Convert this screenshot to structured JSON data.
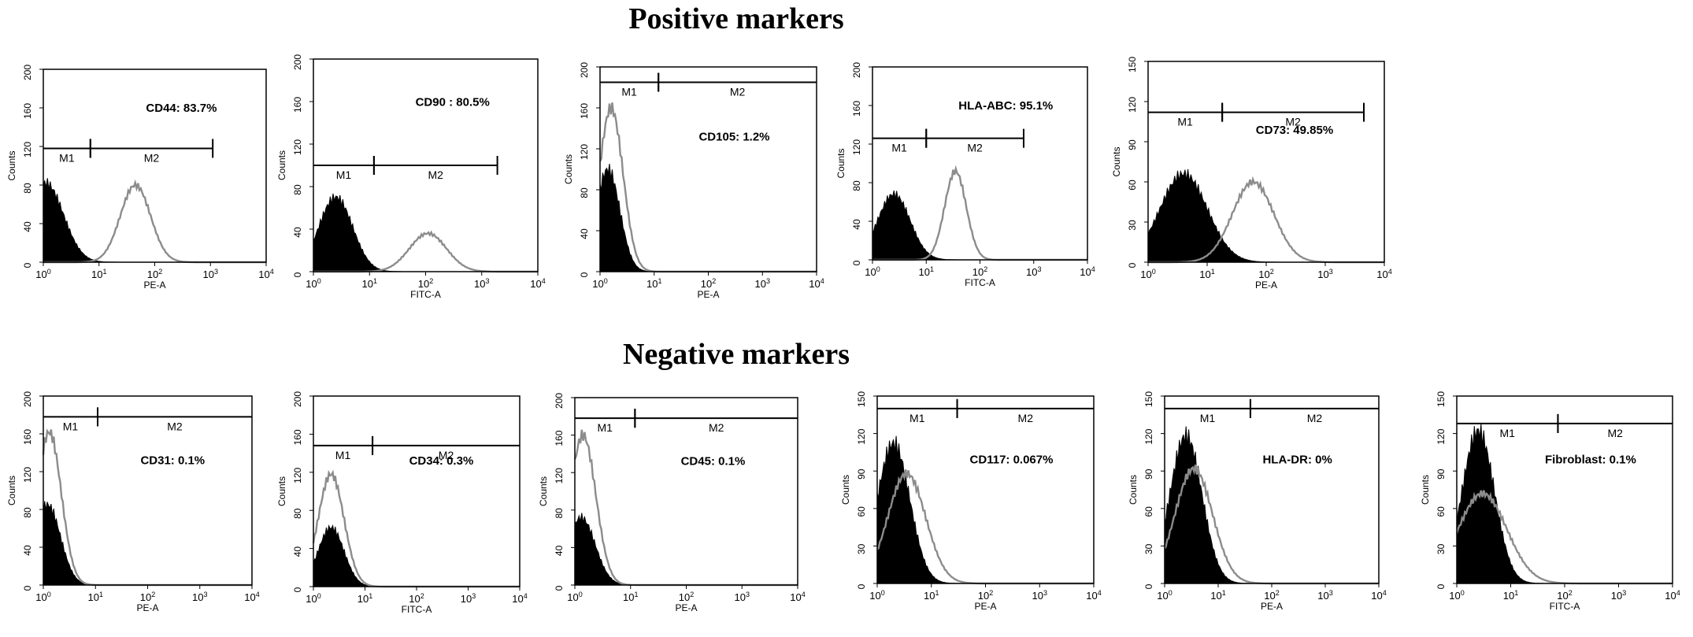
{
  "titles": {
    "positive": "Positive markers",
    "negative": "Negative markers"
  },
  "colors": {
    "control_fill": "#000000",
    "sample_line": "#8c8c8c",
    "frame": "#000000"
  },
  "chart_data": [
    {
      "type": "area",
      "group": "positive",
      "marker": "CD44",
      "label": "CD44: 83.7%",
      "percent": 83.7,
      "xlabel": "PE-A",
      "ylabel": "Counts",
      "xscale": "log",
      "xlim": [
        1,
        10000
      ],
      "ylim": [
        0,
        200
      ],
      "yticks": [
        0,
        40,
        80,
        120,
        160,
        200
      ],
      "xticks": [
        "10^0",
        "10^1",
        "10^2",
        "10^3",
        "10^4"
      ],
      "gates": [
        {
          "name": "M1",
          "range": [
            1,
            7
          ]
        },
        {
          "name": "M2",
          "range": [
            7,
            1100
          ]
        }
      ],
      "gate_y": 118,
      "series": [
        {
          "kind": "control",
          "style": "filled",
          "peak_x": 1.1,
          "peak": 82,
          "width": 0.32
        },
        {
          "kind": "sample",
          "style": "line",
          "peak_x": 45,
          "peak": 80,
          "width": 0.27
        }
      ]
    },
    {
      "type": "area",
      "group": "positive",
      "marker": "CD90",
      "label": "CD90 : 80.5%",
      "percent": 80.5,
      "xlabel": "FITC-A",
      "ylabel": "Counts",
      "xscale": "log",
      "xlim": [
        1,
        10000
      ],
      "ylim": [
        0,
        200
      ],
      "yticks": [
        0,
        40,
        80,
        120,
        160,
        200
      ],
      "xticks": [
        "10^0",
        "10^1",
        "10^2",
        "10^3",
        "10^4"
      ],
      "gates": [
        {
          "name": "M1",
          "range": [
            1,
            12
          ]
        },
        {
          "name": "M2",
          "range": [
            12,
            1900
          ]
        }
      ],
      "gate_y": 100,
      "series": [
        {
          "kind": "control",
          "style": "filled",
          "peak_x": 2.5,
          "peak": 70,
          "width": 0.3
        },
        {
          "kind": "sample",
          "style": "line",
          "peak_x": 110,
          "peak": 36,
          "width": 0.33
        }
      ]
    },
    {
      "type": "area",
      "group": "positive",
      "marker": "CD105",
      "label": "CD105: 1.2%",
      "percent": 1.2,
      "xlabel": "PE-A",
      "ylabel": "Counts",
      "xscale": "log",
      "xlim": [
        1,
        10000
      ],
      "ylim": [
        0,
        200
      ],
      "yticks": [
        0,
        40,
        80,
        120,
        160,
        200
      ],
      "xticks": [
        "10^0",
        "10^1",
        "10^2",
        "10^3",
        "10^4"
      ],
      "gates": [
        {
          "name": "M1",
          "range": [
            1,
            12
          ]
        },
        {
          "name": "M2",
          "range": [
            12,
            10000
          ]
        }
      ],
      "gate_y": 185,
      "series": [
        {
          "kind": "control",
          "style": "filled",
          "peak_x": 1.4,
          "peak": 100,
          "width": 0.22
        },
        {
          "kind": "sample",
          "style": "line",
          "peak_x": 1.6,
          "peak": 160,
          "width": 0.22
        }
      ]
    },
    {
      "type": "area",
      "group": "positive",
      "marker": "HLA-ABC",
      "label": "HLA-ABC: 95.1%",
      "percent": 95.1,
      "xlabel": "FITC-A",
      "ylabel": "Counts",
      "xscale": "log",
      "xlim": [
        1,
        10000
      ],
      "ylim": [
        0,
        200
      ],
      "yticks": [
        0,
        40,
        80,
        120,
        160,
        200
      ],
      "xticks": [
        "10^0",
        "10^1",
        "10^2",
        "10^3",
        "10^4"
      ],
      "gates": [
        {
          "name": "M1",
          "range": [
            1,
            10
          ]
        },
        {
          "name": "M2",
          "range": [
            10,
            650
          ]
        }
      ],
      "gate_y": 126,
      "series": [
        {
          "kind": "control",
          "style": "filled",
          "peak_x": 2.5,
          "peak": 68,
          "width": 0.3
        },
        {
          "kind": "sample",
          "style": "line",
          "peak_x": 35,
          "peak": 92,
          "width": 0.2
        }
      ]
    },
    {
      "type": "area",
      "group": "positive",
      "marker": "CD73",
      "label": "CD73: 49.85%",
      "percent": 49.85,
      "xlabel": "PE-A",
      "ylabel": "Counts",
      "xscale": "log",
      "xlim": [
        1,
        10000
      ],
      "ylim": [
        0,
        150
      ],
      "yticks": [
        0,
        30,
        60,
        90,
        120,
        150
      ],
      "xticks": [
        "10^0",
        "10^1",
        "10^2",
        "10^3",
        "10^4"
      ],
      "gates": [
        {
          "name": "M1",
          "range": [
            1,
            18
          ]
        },
        {
          "name": "M2",
          "range": [
            18,
            4500
          ]
        }
      ],
      "gate_y": 112,
      "series": [
        {
          "kind": "control",
          "style": "filled",
          "peak_x": 4,
          "peak": 66,
          "width": 0.4
        },
        {
          "kind": "sample",
          "style": "line",
          "peak_x": 60,
          "peak": 60,
          "width": 0.35
        }
      ]
    },
    {
      "type": "area",
      "group": "negative",
      "marker": "CD31",
      "label": "CD31: 0.1%",
      "percent": 0.1,
      "xlabel": "PE-A",
      "ylabel": "Counts",
      "xscale": "log",
      "xlim": [
        1,
        10000
      ],
      "ylim": [
        0,
        200
      ],
      "yticks": [
        0,
        40,
        80,
        120,
        160,
        200
      ],
      "xticks": [
        "10^0",
        "10^1",
        "10^2",
        "10^3",
        "10^4"
      ],
      "gates": [
        {
          "name": "M1",
          "range": [
            1,
            11
          ]
        },
        {
          "name": "M2",
          "range": [
            11,
            10000
          ]
        }
      ],
      "gate_y": 178,
      "series": [
        {
          "kind": "control",
          "style": "filled",
          "peak_x": 1.2,
          "peak": 85,
          "width": 0.25
        },
        {
          "kind": "sample",
          "style": "line",
          "peak_x": 1.3,
          "peak": 162,
          "width": 0.23
        }
      ]
    },
    {
      "type": "area",
      "group": "negative",
      "marker": "CD34",
      "label": "CD34: 0.3%",
      "percent": 0.3,
      "xlabel": "FITC-A",
      "ylabel": "Counts",
      "xscale": "log",
      "xlim": [
        1,
        10000
      ],
      "ylim": [
        0,
        200
      ],
      "yticks": [
        0,
        40,
        80,
        120,
        160,
        200
      ],
      "xticks": [
        "10^0",
        "10^1",
        "10^2",
        "10^3",
        "10^4"
      ],
      "gates": [
        {
          "name": "M1",
          "range": [
            1,
            14
          ]
        },
        {
          "name": "M2",
          "range": [
            14,
            10000
          ]
        }
      ],
      "gate_y": 148,
      "series": [
        {
          "kind": "control",
          "style": "filled",
          "peak_x": 2.2,
          "peak": 62,
          "width": 0.25
        },
        {
          "kind": "sample",
          "style": "line",
          "peak_x": 2.2,
          "peak": 118,
          "width": 0.25
        }
      ]
    },
    {
      "type": "area",
      "group": "negative",
      "marker": "CD45",
      "label": "CD45: 0.1%",
      "percent": 0.1,
      "xlabel": "PE-A",
      "ylabel": "Counts",
      "xscale": "log",
      "xlim": [
        1,
        10000
      ],
      "ylim": [
        0,
        200
      ],
      "yticks": [
        0,
        40,
        80,
        120,
        160,
        200
      ],
      "xticks": [
        "10^0",
        "10^1",
        "10^2",
        "10^3",
        "10^4"
      ],
      "gates": [
        {
          "name": "M1",
          "range": [
            1,
            12
          ]
        },
        {
          "name": "M2",
          "range": [
            12,
            10000
          ]
        }
      ],
      "gate_y": 178,
      "series": [
        {
          "kind": "control",
          "style": "filled",
          "peak_x": 1.3,
          "peak": 72,
          "width": 0.25
        },
        {
          "kind": "sample",
          "style": "line",
          "peak_x": 1.4,
          "peak": 160,
          "width": 0.23
        }
      ]
    },
    {
      "type": "area",
      "group": "negative",
      "marker": "CD117",
      "label": "CD117: 0.067%",
      "percent": 0.067,
      "xlabel": "PE-A",
      "ylabel": "Counts",
      "xscale": "log",
      "xlim": [
        1,
        10000
      ],
      "ylim": [
        0,
        150
      ],
      "yticks": [
        0,
        30,
        60,
        90,
        120,
        150
      ],
      "xticks": [
        "10^0",
        "10^1",
        "10^2",
        "10^3",
        "10^4"
      ],
      "gates": [
        {
          "name": "M1",
          "range": [
            1,
            30
          ]
        },
        {
          "name": "M2",
          "range": [
            30,
            10000
          ]
        }
      ],
      "gate_y": 140,
      "series": [
        {
          "kind": "control",
          "style": "filled",
          "peak_x": 2,
          "peak": 112,
          "width": 0.3
        },
        {
          "kind": "sample",
          "style": "line",
          "peak_x": 3.5,
          "peak": 88,
          "width": 0.35
        }
      ]
    },
    {
      "type": "area",
      "group": "negative",
      "marker": "HLA-DR",
      "label": "HLA-DR: 0%",
      "percent": 0,
      "xlabel": "PE-A",
      "ylabel": "Counts",
      "xscale": "log",
      "xlim": [
        1,
        10000
      ],
      "ylim": [
        0,
        150
      ],
      "yticks": [
        0,
        30,
        60,
        90,
        120,
        150
      ],
      "xticks": [
        "10^0",
        "10^1",
        "10^2",
        "10^3",
        "10^4"
      ],
      "gates": [
        {
          "name": "M1",
          "range": [
            1,
            40
          ]
        },
        {
          "name": "M2",
          "range": [
            40,
            10000
          ]
        }
      ],
      "gate_y": 140,
      "series": [
        {
          "kind": "control",
          "style": "filled",
          "peak_x": 2.5,
          "peak": 118,
          "width": 0.3
        },
        {
          "kind": "sample",
          "style": "line",
          "peak_x": 3.5,
          "peak": 92,
          "width": 0.35
        }
      ]
    },
    {
      "type": "area",
      "group": "negative",
      "marker": "Fibroblast",
      "label": "Fibroblast: 0.1%",
      "percent": 0.1,
      "xlabel": "FITC-A",
      "ylabel": "Counts",
      "xscale": "log",
      "xlim": [
        1,
        10000
      ],
      "ylim": [
        0,
        150
      ],
      "yticks": [
        0,
        30,
        60,
        90,
        120,
        150
      ],
      "xticks": [
        "10^0",
        "10^1",
        "10^2",
        "10^3",
        "10^4"
      ],
      "gates": [
        {
          "name": "M1",
          "range": [
            1,
            75
          ]
        },
        {
          "name": "M2",
          "range": [
            75,
            10000
          ]
        }
      ],
      "gate_y": 128,
      "series": [
        {
          "kind": "control",
          "style": "filled",
          "peak_x": 2.5,
          "peak": 122,
          "width": 0.3
        },
        {
          "kind": "sample",
          "style": "line",
          "peak_x": 3,
          "peak": 72,
          "width": 0.45
        }
      ]
    }
  ]
}
